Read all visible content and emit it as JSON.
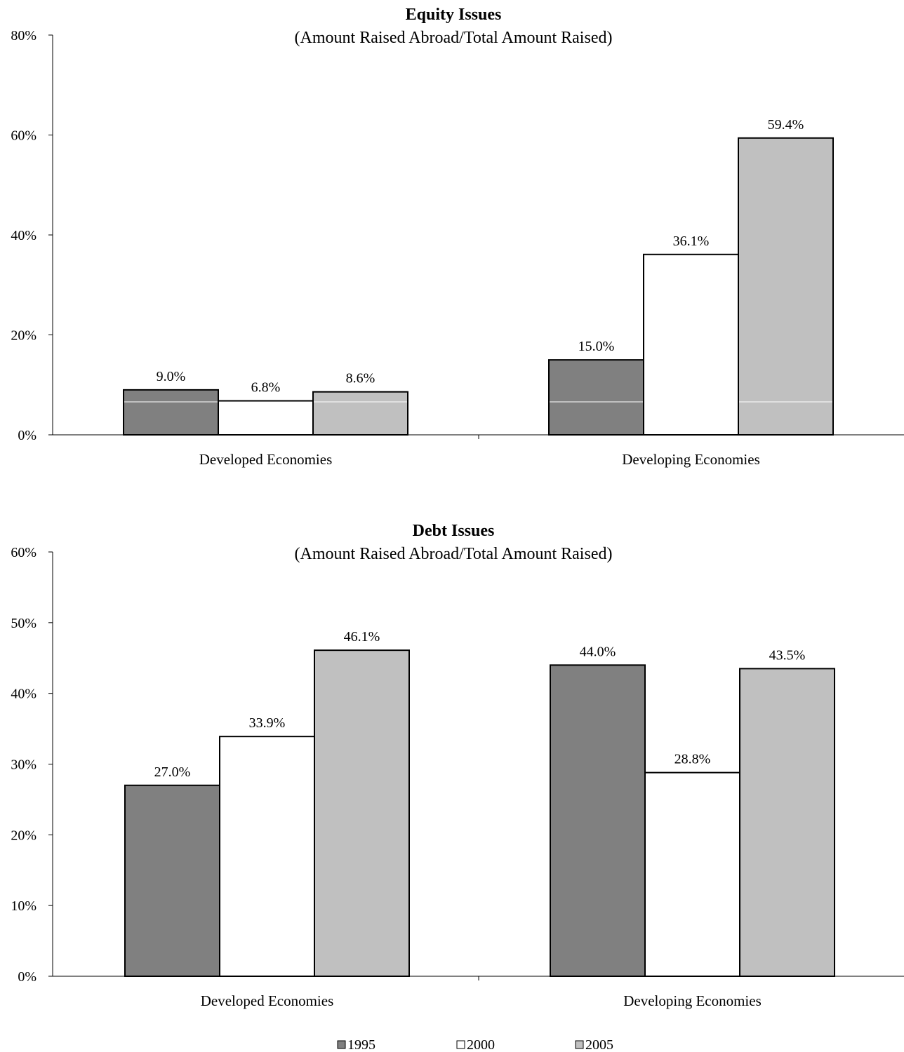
{
  "colors": {
    "1995": "#808080",
    "2000": "#ffffff",
    "2005": "#c0c0c0",
    "axis": "#000000"
  },
  "legend": [
    {
      "name": "1995",
      "color": "#808080"
    },
    {
      "name": "2000",
      "color": "#ffffff"
    },
    {
      "name": "2005",
      "color": "#c0c0c0"
    }
  ],
  "chart_data": [
    {
      "type": "bar",
      "title": "Equity Issues",
      "subtitle": "(Amount Raised Abroad/Total Amount Raised)",
      "categories": [
        "Developed Economies",
        "Developing Economies"
      ],
      "series": [
        {
          "name": "1995",
          "values": [
            9.0,
            15.0
          ],
          "labels": [
            "9.0%",
            "15.0%"
          ]
        },
        {
          "name": "2000",
          "values": [
            6.8,
            36.1
          ],
          "labels": [
            "6.8%",
            "36.1%"
          ]
        },
        {
          "name": "2005",
          "values": [
            8.6,
            59.4
          ],
          "labels": [
            "8.6%",
            "59.4%"
          ]
        }
      ],
      "ylim": [
        0,
        80
      ],
      "yticks": [
        "0%",
        "20%",
        "40%",
        "60%",
        "80%"
      ],
      "xlabel": "",
      "ylabel": "",
      "grid": false
    },
    {
      "type": "bar",
      "title": "Debt Issues",
      "subtitle": "(Amount Raised Abroad/Total Amount Raised)",
      "categories": [
        "Developed Economies",
        "Developing Economies"
      ],
      "series": [
        {
          "name": "1995",
          "values": [
            27.0,
            44.0
          ],
          "labels": [
            "27.0%",
            "44.0%"
          ]
        },
        {
          "name": "2000",
          "values": [
            33.9,
            28.8
          ],
          "labels": [
            "33.9%",
            "28.8%"
          ]
        },
        {
          "name": "2005",
          "values": [
            46.1,
            43.5
          ],
          "labels": [
            "46.1%",
            "43.5%"
          ]
        }
      ],
      "ylim": [
        0,
        60
      ],
      "yticks": [
        "0%",
        "10%",
        "20%",
        "30%",
        "40%",
        "50%",
        "60%"
      ],
      "xlabel": "",
      "ylabel": "",
      "grid": false,
      "legend_position": "bottom"
    }
  ]
}
